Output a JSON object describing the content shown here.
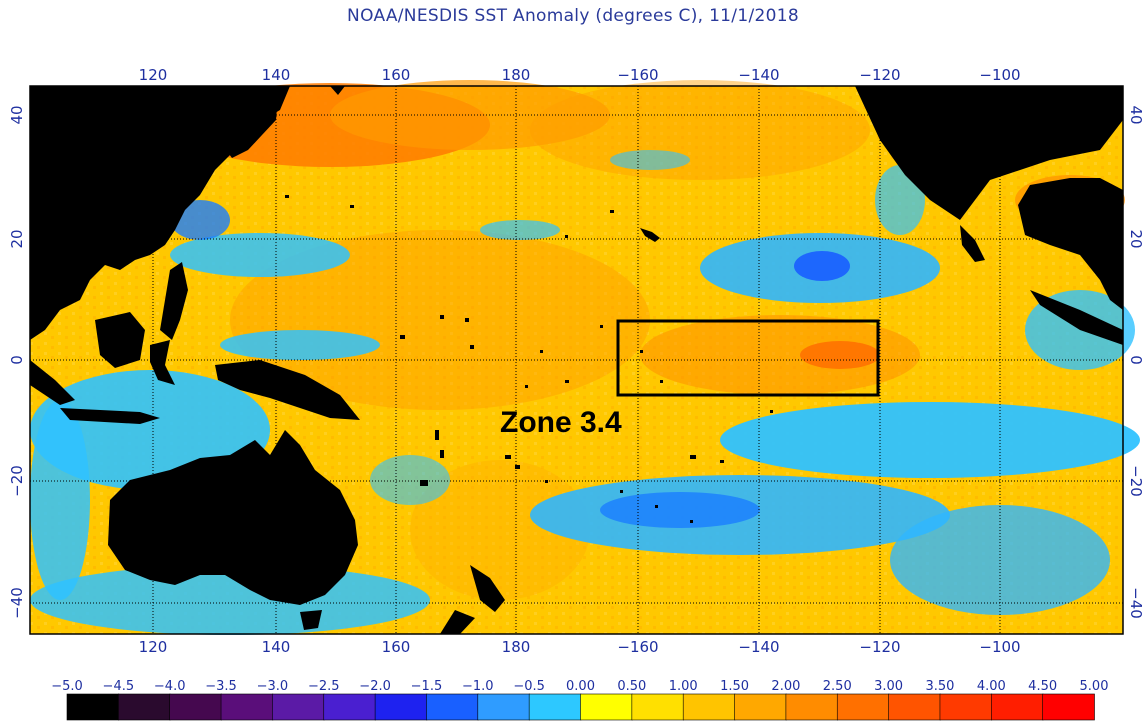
{
  "title": "NOAA/NESDIS SST Anomaly (degrees C), 11/1/2018",
  "map": {
    "lon_range": [
      100,
      283
    ],
    "lat_range": [
      -46,
      46
    ],
    "lon_ticks_top": [
      "120",
      "140",
      "160",
      "180",
      "−160",
      "−140",
      "−120",
      "−100"
    ],
    "lon_ticks_bottom": [
      "120",
      "140",
      "160",
      "180",
      "−160",
      "−140",
      "−120",
      "−100"
    ],
    "lat_ticks_left": [
      "40",
      "20",
      "0",
      "−20",
      "−40"
    ],
    "lat_ticks_right": [
      "40",
      "20",
      "0",
      "−20",
      "−40"
    ],
    "gridlines": "dotted",
    "land_color": "#000000",
    "region_box": {
      "label": "Zone 3.4",
      "lon_west": -163,
      "lon_east": -120,
      "lat_north": 6,
      "lat_south": -6
    }
  },
  "colorbar": {
    "labels": [
      "−5.0",
      "−4.5",
      "−4.0",
      "−3.5",
      "−3.0",
      "−2.5",
      "−2.0",
      "−1.5",
      "−1.0",
      "−0.5",
      "0.00",
      "0.50",
      "1.00",
      "1.50",
      "2.00",
      "2.50",
      "3.00",
      "3.50",
      "4.00",
      "4.50",
      "5.00"
    ],
    "colors": [
      "#000000",
      "#2a0a2e",
      "#45084f",
      "#5a0e7a",
      "#5b1aa6",
      "#4a1fd0",
      "#1e22f0",
      "#1960ff",
      "#2f9cff",
      "#2dc8ff",
      "#ffff00",
      "#ffe000",
      "#ffc400",
      "#ffa800",
      "#ff8c00",
      "#ff7000",
      "#ff5400",
      "#ff3a00",
      "#ff1e00",
      "#ff0000"
    ]
  }
}
